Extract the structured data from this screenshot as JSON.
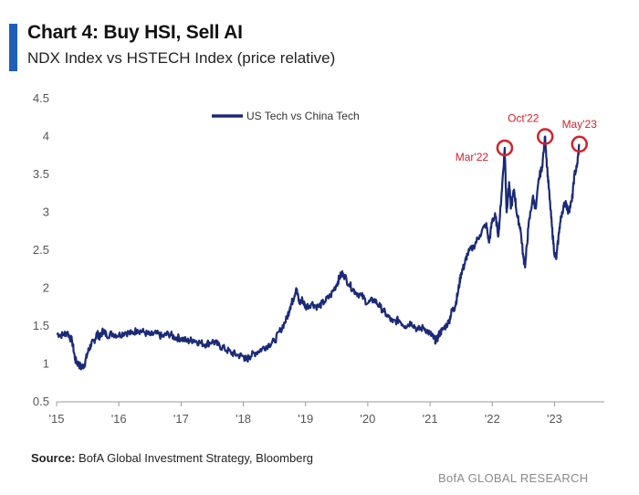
{
  "header": {
    "title": "Chart 4: Buy HSI, Sell AI",
    "subtitle": "NDX Index vs HSTECH Index (price relative)"
  },
  "footer": {
    "source_label": "Source:",
    "source_text": " BofA Global Investment Strategy, Bloomberg",
    "brand": "BofA GLOBAL RESEARCH"
  },
  "colors": {
    "line": "#1b2a78",
    "accent": "#1f5fb8",
    "annotation": "#d2232a"
  },
  "chart_data": {
    "type": "line",
    "title": "Chart 4: Buy HSI, Sell AI",
    "subtitle": "NDX Index vs HSTECH Index (price relative)",
    "xlabel": "",
    "ylabel": "",
    "xlim": [
      2015.0,
      2023.8
    ],
    "ylim": [
      0.5,
      4.5
    ],
    "x_ticks": [
      2015,
      2016,
      2017,
      2018,
      2019,
      2020,
      2021,
      2022,
      2023
    ],
    "x_tick_labels": [
      "'15",
      "'16",
      "'17",
      "'18",
      "'19",
      "'20",
      "'21",
      "'22",
      "'23"
    ],
    "y_ticks": [
      0.5,
      1,
      1.5,
      2,
      2.5,
      3,
      3.5,
      4,
      4.5
    ],
    "y_tick_labels": [
      "0.5",
      "1",
      "1.5",
      "2",
      "2.5",
      "3",
      "3.5",
      "4",
      "4.5"
    ],
    "grid": false,
    "legend_position": "top-center",
    "series": [
      {
        "name": "US Tech vs China Tech",
        "points": [
          [
            2015.0,
            1.4
          ],
          [
            2015.1,
            1.38
          ],
          [
            2015.17,
            1.42
          ],
          [
            2015.25,
            1.3
          ],
          [
            2015.3,
            1.05
          ],
          [
            2015.35,
            1.0
          ],
          [
            2015.4,
            0.95
          ],
          [
            2015.45,
            1.0
          ],
          [
            2015.5,
            1.15
          ],
          [
            2015.55,
            1.25
          ],
          [
            2015.6,
            1.3
          ],
          [
            2015.65,
            1.4
          ],
          [
            2015.7,
            1.35
          ],
          [
            2015.75,
            1.45
          ],
          [
            2015.8,
            1.38
          ],
          [
            2015.9,
            1.4
          ],
          [
            2016.0,
            1.38
          ],
          [
            2016.1,
            1.42
          ],
          [
            2016.2,
            1.4
          ],
          [
            2016.3,
            1.45
          ],
          [
            2016.4,
            1.42
          ],
          [
            2016.5,
            1.38
          ],
          [
            2016.6,
            1.4
          ],
          [
            2016.7,
            1.36
          ],
          [
            2016.8,
            1.4
          ],
          [
            2016.9,
            1.35
          ],
          [
            2017.0,
            1.34
          ],
          [
            2017.1,
            1.3
          ],
          [
            2017.2,
            1.32
          ],
          [
            2017.3,
            1.28
          ],
          [
            2017.4,
            1.26
          ],
          [
            2017.5,
            1.3
          ],
          [
            2017.6,
            1.25
          ],
          [
            2017.7,
            1.2
          ],
          [
            2017.8,
            1.15
          ],
          [
            2017.9,
            1.12
          ],
          [
            2018.0,
            1.1
          ],
          [
            2018.05,
            1.05
          ],
          [
            2018.1,
            1.1
          ],
          [
            2018.2,
            1.15
          ],
          [
            2018.3,
            1.2
          ],
          [
            2018.4,
            1.25
          ],
          [
            2018.5,
            1.3
          ],
          [
            2018.6,
            1.45
          ],
          [
            2018.7,
            1.6
          ],
          [
            2018.75,
            1.75
          ],
          [
            2018.8,
            1.85
          ],
          [
            2018.85,
            2.0
          ],
          [
            2018.9,
            1.8
          ],
          [
            2018.95,
            1.85
          ],
          [
            2019.0,
            1.75
          ],
          [
            2019.1,
            1.8
          ],
          [
            2019.2,
            1.75
          ],
          [
            2019.3,
            1.82
          ],
          [
            2019.4,
            1.9
          ],
          [
            2019.5,
            2.05
          ],
          [
            2019.55,
            2.15
          ],
          [
            2019.6,
            2.2
          ],
          [
            2019.7,
            2.05
          ],
          [
            2019.8,
            1.95
          ],
          [
            2019.9,
            1.9
          ],
          [
            2020.0,
            1.8
          ],
          [
            2020.1,
            1.85
          ],
          [
            2020.2,
            1.75
          ],
          [
            2020.3,
            1.65
          ],
          [
            2020.4,
            1.55
          ],
          [
            2020.5,
            1.58
          ],
          [
            2020.6,
            1.5
          ],
          [
            2020.7,
            1.55
          ],
          [
            2020.8,
            1.45
          ],
          [
            2020.9,
            1.48
          ],
          [
            2021.0,
            1.4
          ],
          [
            2021.05,
            1.35
          ],
          [
            2021.1,
            1.3
          ],
          [
            2021.15,
            1.4
          ],
          [
            2021.2,
            1.45
          ],
          [
            2021.3,
            1.55
          ],
          [
            2021.35,
            1.7
          ],
          [
            2021.4,
            1.75
          ],
          [
            2021.45,
            1.95
          ],
          [
            2021.5,
            2.2
          ],
          [
            2021.55,
            2.3
          ],
          [
            2021.6,
            2.45
          ],
          [
            2021.7,
            2.55
          ],
          [
            2021.8,
            2.7
          ],
          [
            2021.9,
            2.85
          ],
          [
            2021.95,
            2.6
          ],
          [
            2022.0,
            2.9
          ],
          [
            2022.05,
            2.95
          ],
          [
            2022.1,
            2.7
          ],
          [
            2022.15,
            3.25
          ],
          [
            2022.2,
            3.85
          ],
          [
            2022.23,
            3.0
          ],
          [
            2022.27,
            3.4
          ],
          [
            2022.3,
            3.05
          ],
          [
            2022.35,
            3.3
          ],
          [
            2022.4,
            2.95
          ],
          [
            2022.45,
            2.8
          ],
          [
            2022.5,
            2.4
          ],
          [
            2022.53,
            2.3
          ],
          [
            2022.58,
            2.8
          ],
          [
            2022.65,
            3.2
          ],
          [
            2022.7,
            3.05
          ],
          [
            2022.75,
            3.45
          ],
          [
            2022.8,
            3.6
          ],
          [
            2022.85,
            4.0
          ],
          [
            2022.88,
            3.6
          ],
          [
            2022.92,
            3.2
          ],
          [
            2022.96,
            2.8
          ],
          [
            2023.0,
            2.45
          ],
          [
            2023.03,
            2.4
          ],
          [
            2023.08,
            2.8
          ],
          [
            2023.12,
            3.0
          ],
          [
            2023.18,
            3.15
          ],
          [
            2023.22,
            3.0
          ],
          [
            2023.28,
            3.15
          ],
          [
            2023.32,
            3.5
          ],
          [
            2023.36,
            3.6
          ],
          [
            2023.4,
            3.9
          ]
        ]
      }
    ],
    "annotations": [
      {
        "label": "Mar'22",
        "x": 2022.2,
        "y": 3.85
      },
      {
        "label": "Oct'22",
        "x": 2022.85,
        "y": 4.0
      },
      {
        "label": "May'23",
        "x": 2023.4,
        "y": 3.9
      }
    ]
  }
}
